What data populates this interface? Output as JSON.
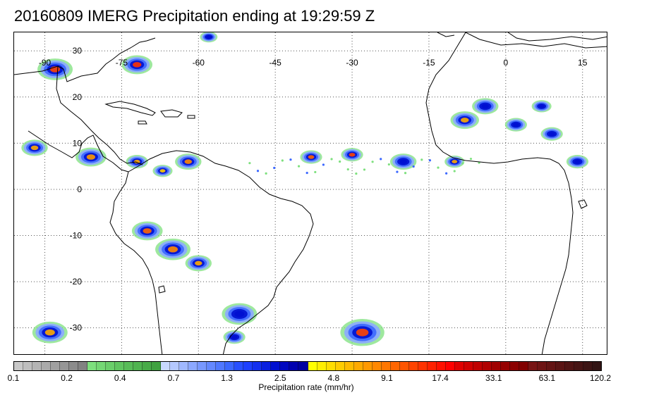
{
  "title": "20160809 IMERG Precipitation ending at 19:29:59 Z",
  "map": {
    "lon_labels": [
      "-90",
      "-75",
      "-60",
      "-45",
      "-30",
      "-15",
      "0",
      "15"
    ],
    "lat_labels": [
      "30",
      "20",
      "10",
      "0",
      "-10",
      "-20",
      "-30"
    ],
    "lon_range": [
      -96,
      20
    ],
    "lat_range": [
      -36,
      34
    ],
    "gridlines": "dotted",
    "coastline_color": "#000000"
  },
  "colorbar": {
    "label": "Precipitation rate (mm/hr)",
    "tick_labels": [
      "0.1",
      "0.2",
      "0.4",
      "0.7",
      "1.3",
      "2.5",
      "4.8",
      "9.1",
      "17.4",
      "33.1",
      "63.1",
      "120.2"
    ],
    "colors": [
      "#c8c8c8",
      "#bebebe",
      "#b4b4b4",
      "#aaaaaa",
      "#a0a0a0",
      "#969696",
      "#8c8c8c",
      "#828282",
      "#7ee07e",
      "#74d774",
      "#6ace6a",
      "#60c560",
      "#58bc58",
      "#50b450",
      "#48ab48",
      "#40a240",
      "#c8d8ff",
      "#b4c8ff",
      "#a0b8ff",
      "#8ca8ff",
      "#7898ff",
      "#6488ff",
      "#5078ff",
      "#3c68ff",
      "#2850ff",
      "#1e40ff",
      "#1430f0",
      "#0a20e0",
      "#0010d0",
      "#0008c0",
      "#0000b0",
      "#0000a0",
      "#ffff00",
      "#ffee00",
      "#ffdd00",
      "#ffcc00",
      "#ffbb00",
      "#ffaa00",
      "#ff9900",
      "#ff8800",
      "#ff7700",
      "#ff6600",
      "#ff5500",
      "#ff4400",
      "#ff3300",
      "#ff2200",
      "#ff1100",
      "#ff0000",
      "#e00000",
      "#d00000",
      "#c00000",
      "#b00000",
      "#a00000",
      "#960000",
      "#8c0000",
      "#820000",
      "#781414",
      "#6e1414",
      "#641414",
      "#5a1414",
      "#501414",
      "#461414",
      "#3c1414",
      "#321414"
    ]
  },
  "precip_clusters": [
    {
      "lon": -88,
      "lat": 26,
      "r": 1.6,
      "peak": "#ff4400"
    },
    {
      "lon": -72,
      "lat": 27,
      "r": 1.4,
      "peak": "#ff3300"
    },
    {
      "lon": -58,
      "lat": 33,
      "r": 0.8,
      "peak": "#0010d0"
    },
    {
      "lon": -92,
      "lat": 9,
      "r": 1.2,
      "peak": "#ffaa00"
    },
    {
      "lon": -81,
      "lat": 7,
      "r": 1.4,
      "peak": "#ff9900"
    },
    {
      "lon": -72,
      "lat": 6,
      "r": 1.0,
      "peak": "#ffaa00"
    },
    {
      "lon": -62,
      "lat": 6,
      "r": 1.2,
      "peak": "#ff8800"
    },
    {
      "lon": -67,
      "lat": 4,
      "r": 0.9,
      "peak": "#ffcc00"
    },
    {
      "lon": -38,
      "lat": 7,
      "r": 1.0,
      "peak": "#ff6600"
    },
    {
      "lon": -30,
      "lat": 7.5,
      "r": 1.0,
      "peak": "#ff4400"
    },
    {
      "lon": -20,
      "lat": 6,
      "r": 1.2,
      "peak": "#0010d0"
    },
    {
      "lon": -8,
      "lat": 15,
      "r": 1.3,
      "peak": "#ffaa00"
    },
    {
      "lon": -4,
      "lat": 18,
      "r": 1.2,
      "peak": "#0010d0"
    },
    {
      "lon": 2,
      "lat": 14,
      "r": 1.0,
      "peak": "#0010d0"
    },
    {
      "lon": 7,
      "lat": 18,
      "r": 0.9,
      "peak": "#0010d0"
    },
    {
      "lon": 9,
      "lat": 12,
      "r": 1.0,
      "peak": "#0010d0"
    },
    {
      "lon": -10,
      "lat": 6,
      "r": 0.9,
      "peak": "#ffaa00"
    },
    {
      "lon": 14,
      "lat": 6,
      "r": 1.0,
      "peak": "#0010d0"
    },
    {
      "lon": -70,
      "lat": -9,
      "r": 1.4,
      "peak": "#ff6600"
    },
    {
      "lon": -65,
      "lat": -13,
      "r": 1.6,
      "peak": "#ff8800"
    },
    {
      "lon": -60,
      "lat": -16,
      "r": 1.2,
      "peak": "#ffaa00"
    },
    {
      "lon": -52,
      "lat": -27,
      "r": 1.6,
      "peak": "#0010d0"
    },
    {
      "lon": -53,
      "lat": -32,
      "r": 1.0,
      "peak": "#0010d0"
    },
    {
      "lon": -89,
      "lat": -31,
      "r": 1.6,
      "peak": "#ffaa00"
    },
    {
      "lon": -28,
      "lat": -31,
      "r": 2.0,
      "peak": "#ff4400"
    }
  ]
}
